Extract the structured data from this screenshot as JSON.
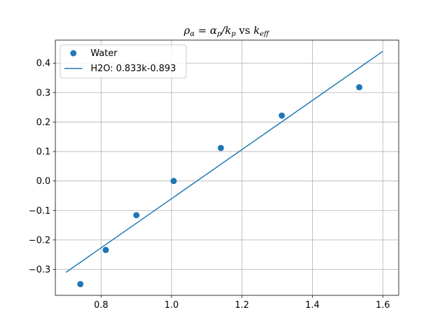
{
  "chart_data": {
    "type": "scatter",
    "title": {
      "rho": "ρ",
      "rho_sub": "α",
      "eq": " = ",
      "alpha": "α",
      "alpha_sub": "p",
      "slash": "/",
      "k": "k",
      "k_sub": "p",
      "vs": " vs ",
      "k2": "k",
      "k2_sub": "eff"
    },
    "xlabel": "",
    "ylabel": "",
    "xlim": [
      0.67,
      1.645
    ],
    "ylim": [
      -0.388,
      0.478
    ],
    "x_ticks": [
      0.8,
      1.0,
      1.2,
      1.4,
      1.6
    ],
    "x_tick_labels": [
      "0.8",
      "1.0",
      "1.2",
      "1.4",
      "1.6"
    ],
    "y_ticks": [
      -0.3,
      -0.2,
      -0.1,
      0.0,
      0.1,
      0.2,
      0.3,
      0.4
    ],
    "y_tick_labels": [
      "−0.3",
      "−0.2",
      "−0.1",
      "0.0",
      "0.1",
      "0.2",
      "0.3",
      "0.4"
    ],
    "grid": true,
    "legend_position": "top-left",
    "series": [
      {
        "name": "Water",
        "kind": "scatter",
        "color": "#1f77b4",
        "points": [
          {
            "x": 0.741,
            "y": -0.35
          },
          {
            "x": 0.813,
            "y": -0.234
          },
          {
            "x": 0.9,
            "y": -0.116
          },
          {
            "x": 1.006,
            "y": 0.0
          },
          {
            "x": 1.14,
            "y": 0.112
          },
          {
            "x": 1.313,
            "y": 0.222
          },
          {
            "x": 1.533,
            "y": 0.318
          }
        ]
      },
      {
        "name": "H2O: 0.833k-0.893",
        "kind": "line",
        "color": "#1f77b4",
        "points": [
          {
            "x": 0.7,
            "y": -0.31
          },
          {
            "x": 1.6,
            "y": 0.44
          }
        ]
      }
    ]
  }
}
